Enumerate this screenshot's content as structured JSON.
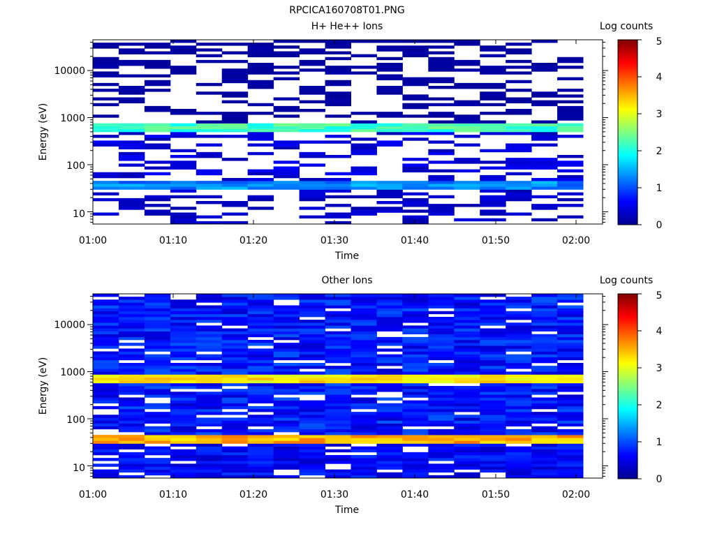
{
  "figure_title": "RPCICA160708T01.PNG",
  "chart_data": [
    {
      "type": "heatmap",
      "title": "H+ He++ Ions",
      "xlabel": "Time",
      "ylabel": "Energy (eV)",
      "x_ticks": [
        "01:00",
        "01:10",
        "01:20",
        "01:30",
        "01:40",
        "01:50",
        "02:00"
      ],
      "x_range": [
        "01:00",
        "02:03"
      ],
      "y_scale": "log",
      "y_ticks": [
        "10",
        "100",
        "1000",
        "10000"
      ],
      "y_range": [
        5.5,
        45000
      ],
      "colorbar": {
        "label": "Log counts",
        "ticks": [
          "0",
          "1",
          "2",
          "3",
          "4",
          "5"
        ],
        "range": [
          0,
          5
        ]
      },
      "n_time_bins": 19,
      "background": "white",
      "features": [
        {
          "energy_range_eV": [
            480,
            750
          ],
          "log_counts": 2.2,
          "description": "persistent band"
        },
        {
          "energy_range_eV": [
            28,
            45
          ],
          "log_counts": 1.3,
          "description": "low-energy band"
        },
        {
          "energy_range_eV": [
            5.5,
            28
          ],
          "log_counts": 0.3,
          "description": "sparse low-energy counts"
        },
        {
          "energy_range_eV": [
            45,
            480
          ],
          "log_counts": 0.4,
          "description": "sparse counts"
        },
        {
          "energy_range_eV": [
            750,
            45000
          ],
          "log_counts": 0.1,
          "description": "sparse high-energy counts"
        }
      ]
    },
    {
      "type": "heatmap",
      "title": "Other Ions",
      "xlabel": "Time",
      "ylabel": "Energy (eV)",
      "x_ticks": [
        "01:00",
        "01:10",
        "01:20",
        "01:30",
        "01:40",
        "01:50",
        "02:00"
      ],
      "x_range": [
        "01:00",
        "02:03"
      ],
      "y_scale": "log",
      "y_ticks": [
        "10",
        "100",
        "1000",
        "10000"
      ],
      "y_range": [
        5.5,
        45000
      ],
      "colorbar": {
        "label": "Log counts",
        "ticks": [
          "0",
          "1",
          "2",
          "3",
          "4",
          "5"
        ],
        "range": [
          0,
          5
        ]
      },
      "n_time_bins": 19,
      "background": "white",
      "features": [
        {
          "energy_range_eV": [
            540,
            820
          ],
          "log_counts": 3.2,
          "description": "persistent band"
        },
        {
          "energy_range_eV": [
            28,
            45
          ],
          "log_counts": 3.5,
          "description": "low-energy band"
        },
        {
          "energy_range_eV": [
            45,
            540
          ],
          "log_counts": 0.7,
          "description": "background counts"
        },
        {
          "energy_range_eV": [
            820,
            45000
          ],
          "log_counts": 0.7,
          "description": "background counts"
        },
        {
          "energy_range_eV": [
            5.5,
            28
          ],
          "log_counts": 0.6,
          "description": "low-energy counts"
        }
      ]
    }
  ]
}
